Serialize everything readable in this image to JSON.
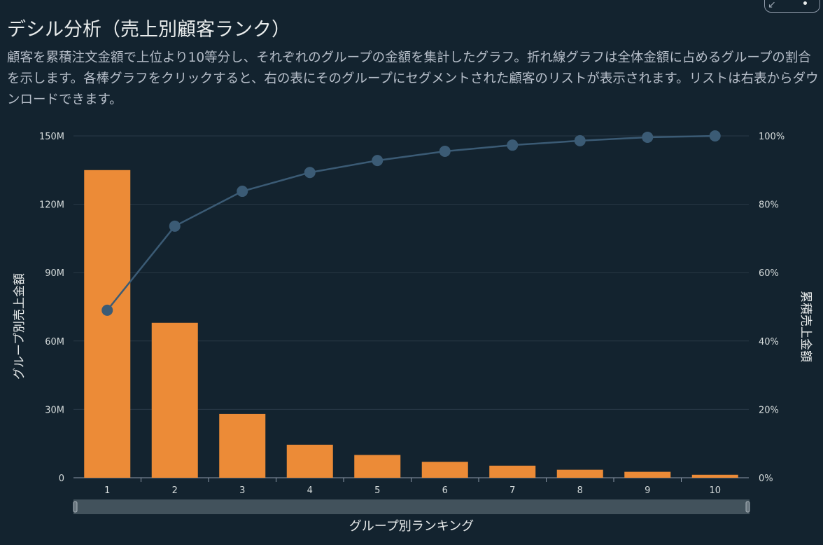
{
  "header": {
    "title": "デシル分析（売上別顧客ランク）",
    "description": "顧客を累積注文金額で上位より10等分し、それぞれのグループの金額を集計したグラフ。折れ線グラフは全体金額に占めるグループの割合を示します。各棒グラフをクリックすると、右の表にそのグループにセグメントされた顧客のリストが表示されます。リストは右表からダウンロードできます。"
  },
  "colors": {
    "bar": "#ec8b37",
    "line": "#3b5b75",
    "background": "#13232f",
    "grid": "#2a3a47"
  },
  "chart_data": {
    "type": "bar+line",
    "categories": [
      "1",
      "2",
      "3",
      "4",
      "5",
      "6",
      "7",
      "8",
      "9",
      "10"
    ],
    "series": [
      {
        "name": "グループ別売上金額",
        "type": "bar",
        "axis": "left",
        "values": [
          135000000,
          68000000,
          28000000,
          14500000,
          10000000,
          7000000,
          5300000,
          3500000,
          2600000,
          1300000
        ]
      },
      {
        "name": "累積売上金額",
        "type": "line",
        "axis": "right",
        "values": [
          49,
          73.6,
          83.8,
          89.3,
          92.8,
          95.5,
          97.3,
          98.6,
          99.6,
          100
        ]
      }
    ],
    "xlabel": "グループ別ランキング",
    "ylabel": "グループ別売上金額",
    "y2label": "累積売上金額",
    "ylim": [
      0,
      150000000
    ],
    "y2lim": [
      0,
      100
    ],
    "yticks": [
      "0",
      "30M",
      "60M",
      "90M",
      "120M",
      "150M"
    ],
    "y2ticks": [
      "0%",
      "20%",
      "40%",
      "60%",
      "80%",
      "100%"
    ],
    "grid": true
  }
}
